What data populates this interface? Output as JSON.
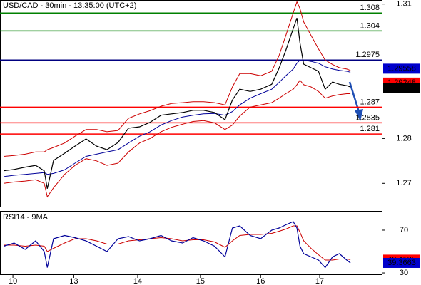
{
  "chart_data": [
    {
      "type": "line",
      "title": "USD/CAD - 30min - 13:35:00 (UTC+2)",
      "x": [
        -0.15,
        0.02,
        0.2,
        0.37,
        0.51,
        0.56,
        0.66,
        0.84,
        1.01,
        1.19,
        1.36,
        1.53,
        1.71,
        1.88,
        2.06,
        2.23,
        2.41,
        2.58,
        2.76,
        2.93,
        3.1,
        3.28,
        3.45,
        3.57,
        3.69,
        3.86,
        4.03,
        4.21,
        4.33,
        4.44,
        4.56,
        4.62,
        4.67,
        4.73,
        4.85,
        4.97,
        5.08,
        5.2,
        5.31,
        5.43,
        5.49
      ],
      "values": [
        1.2728,
        1.2731,
        1.2736,
        1.274,
        1.2728,
        1.2688,
        1.2751,
        1.2767,
        1.2783,
        1.2799,
        1.2783,
        1.2775,
        1.2791,
        1.2823,
        1.2826,
        1.2836,
        1.2852,
        1.2855,
        1.2858,
        1.2863,
        1.2863,
        1.2858,
        1.2842,
        1.2886,
        1.291,
        1.2905,
        1.291,
        1.2921,
        1.2957,
        1.2997,
        1.3045,
        1.3069,
        1.3013,
        1.2966,
        1.2958,
        1.295,
        1.291,
        1.2926,
        1.2921,
        1.2918,
        1.2915
      ],
      "color": "#000000",
      "overlays": [
        {
          "color": "#cc0000",
          "values": [
            1.276,
            1.2762,
            1.2765,
            1.277,
            1.277,
            1.2775,
            1.278,
            1.279,
            1.2805,
            1.282,
            1.282,
            1.2815,
            1.2818,
            1.2845,
            1.2855,
            1.2862,
            1.2872,
            1.2878,
            1.288,
            1.2882,
            1.2882,
            1.288,
            1.2875,
            1.2915,
            1.2945,
            1.2945,
            1.294,
            1.295,
            1.2985,
            1.303,
            1.308,
            1.3105,
            1.309,
            1.306,
            1.303,
            1.3,
            1.2975,
            1.2965,
            1.2958,
            1.2955,
            1.2952
          ]
        },
        {
          "color": "#cc0000",
          "values": [
            1.27,
            1.2703,
            1.2705,
            1.2708,
            1.27,
            1.267,
            1.269,
            1.272,
            1.274,
            1.2755,
            1.275,
            1.274,
            1.2745,
            1.277,
            1.279,
            1.28,
            1.2815,
            1.2825,
            1.2832,
            1.2838,
            1.284,
            1.2835,
            1.282,
            1.283,
            1.285,
            1.287,
            1.2875,
            1.288,
            1.289,
            1.29,
            1.291,
            1.292,
            1.293,
            1.292,
            1.2915,
            1.2905,
            1.289,
            1.2895,
            1.2898,
            1.29,
            1.29
          ]
        },
        {
          "color": "#000099",
          "values": [
            1.2715,
            1.2718,
            1.272,
            1.2722,
            1.2724,
            1.272,
            1.2722,
            1.273,
            1.2745,
            1.276,
            1.2765,
            1.277,
            1.2775,
            1.279,
            1.2805,
            1.2815,
            1.283,
            1.284,
            1.2848,
            1.2852,
            1.2855,
            1.2856,
            1.2852,
            1.286,
            1.2875,
            1.289,
            1.29,
            1.291,
            1.2925,
            1.294,
            1.2955,
            1.2968,
            1.2975,
            1.2975,
            1.2972,
            1.2968,
            1.296,
            1.2955,
            1.2952,
            1.295,
            1.2948
          ]
        }
      ],
      "levels": [
        {
          "value": 1.308,
          "color": "#008000"
        },
        {
          "value": 1.304,
          "color": "#008000"
        },
        {
          "value": 1.2975,
          "color": "#000080"
        },
        {
          "value": 1.287,
          "color": "#ff0000"
        },
        {
          "value": 1.2835,
          "color": "#ff0000"
        },
        {
          "value": 1.281,
          "color": "#ff0000"
        }
      ],
      "markers": [
        {
          "value": 1.29558,
          "color": "#0000cc"
        },
        {
          "value": 1.29248,
          "color": "#ff0000"
        },
        {
          "value": 1.29134,
          "color": "#000000"
        }
      ],
      "xlim": [
        -0.21,
        6.0
      ],
      "xticks": [
        {
          "value": 0,
          "label": "10"
        },
        {
          "value": 0.99,
          "label": "13"
        },
        {
          "value": 2.03,
          "label": "14"
        },
        {
          "value": 3.05,
          "label": "15"
        },
        {
          "value": 4.03,
          "label": "16"
        },
        {
          "value": 4.99,
          "label": "17"
        }
      ],
      "ylim": [
        1.2648,
        1.3109
      ],
      "yticks": [
        1.31,
        1.28,
        1.27
      ]
    },
    {
      "type": "line",
      "title": "RSI14 - 9MA",
      "values": [
        55,
        58,
        52,
        60,
        50,
        35,
        62,
        65,
        63,
        60,
        55,
        50,
        62,
        64,
        60,
        62,
        65,
        60,
        58,
        63,
        60,
        55,
        45,
        72,
        74,
        65,
        62,
        70,
        72,
        75,
        78,
        72,
        55,
        48,
        45,
        42,
        35,
        45,
        48,
        42,
        39.3663
      ],
      "color": "#000099",
      "overlays": [
        {
          "color": "#cc0000",
          "values": [
            56,
            56,
            55,
            56,
            55,
            50,
            53,
            58,
            62,
            62,
            60,
            57,
            57,
            60,
            61,
            62,
            63,
            62,
            60,
            61,
            61,
            59,
            54,
            60,
            65,
            66,
            66,
            67,
            69,
            71,
            74,
            74,
            68,
            60,
            53,
            47,
            42,
            42,
            43,
            43,
            42.4135
          ]
        }
      ],
      "markers": [
        {
          "value": 42.4135,
          "color": "#ff0000"
        },
        {
          "value": 39.3663,
          "color": "#0000cc"
        }
      ],
      "ylim": [
        28.7,
        87.3
      ],
      "yticks": [
        70,
        30
      ]
    }
  ]
}
